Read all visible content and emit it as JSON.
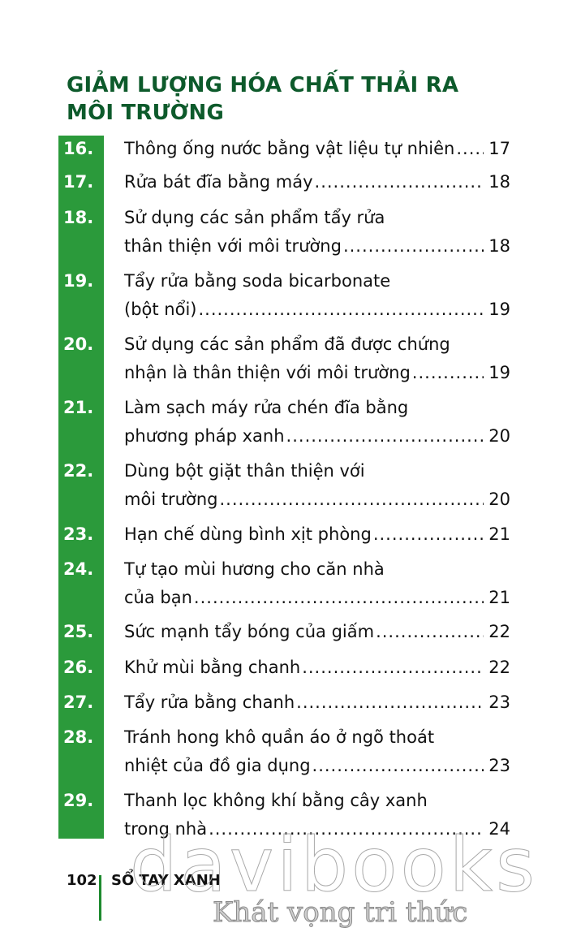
{
  "section_title": [
    "GIẢM LƯỢNG HÓA CHẤT THẢI RA",
    "MÔI TRƯỜNG"
  ],
  "entries": [
    {
      "num": "16.",
      "lines": [
        "Thông ống nước bằng vật liệu tự nhiên"
      ],
      "page": "17"
    },
    {
      "num": "17.",
      "lines": [
        "Rửa bát đĩa bằng máy"
      ],
      "page": "18"
    },
    {
      "num": "18.",
      "lines": [
        "Sử dụng các sản phẩm tẩy rửa",
        "thân thiện với môi trường"
      ],
      "page": "18"
    },
    {
      "num": "19.",
      "lines": [
        "Tẩy rửa bằng soda bicarbonate",
        "(bột nổi)"
      ],
      "page": "19"
    },
    {
      "num": "20.",
      "lines": [
        "Sử dụng các sản phẩm đã được chứng",
        "nhận là thân thiện với môi trường"
      ],
      "page": "19"
    },
    {
      "num": "21.",
      "lines": [
        "Làm sạch máy rửa chén đĩa bằng",
        "phương pháp xanh"
      ],
      "page": "20"
    },
    {
      "num": "22.",
      "lines": [
        "Dùng bột giặt thân thiện với",
        "môi trường"
      ],
      "page": "20"
    },
    {
      "num": "23.",
      "lines": [
        "Hạn chế dùng bình xịt phòng"
      ],
      "page": "21"
    },
    {
      "num": "24.",
      "lines": [
        "Tự tạo mùi hương cho căn nhà",
        "của bạn"
      ],
      "page": "21"
    },
    {
      "num": "25.",
      "lines": [
        "Sức mạnh tẩy bóng của giấm"
      ],
      "page": "22"
    },
    {
      "num": "26.",
      "lines": [
        "Khử mùi bằng chanh"
      ],
      "page": "22"
    },
    {
      "num": "27.",
      "lines": [
        "Tẩy rửa bằng chanh"
      ],
      "page": "23"
    },
    {
      "num": "28.",
      "lines": [
        "Tránh hong khô quần áo ở ngõ thoát",
        "nhiệt của đồ gia dụng"
      ],
      "page": "23"
    },
    {
      "num": "29.",
      "lines": [
        "Thanh lọc không khí bằng cây xanh",
        "trong nhà"
      ],
      "page": "24"
    }
  ],
  "footer": {
    "page_number": "102",
    "book_title": "SỔ TAY XANH"
  },
  "watermark": {
    "brand": "davibooks",
    "tagline": "Khát vọng tri thức"
  },
  "colors": {
    "title": "#0d5a2b",
    "number_bar": "#2b9a3b"
  }
}
